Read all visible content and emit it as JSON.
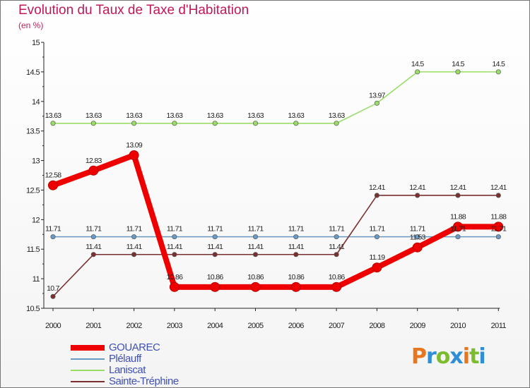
{
  "chart_data": {
    "type": "line",
    "title": "Evolution du Taux de Taxe d'Habitation",
    "subtitle": "(en %)",
    "xlabel": "",
    "ylabel": "",
    "categories": [
      "2000",
      "2001",
      "2002",
      "2003",
      "2004",
      "2005",
      "2006",
      "2007",
      "2008",
      "2009",
      "2010",
      "2011"
    ],
    "y_ticks": [
      "10.5",
      "11",
      "11.5",
      "12",
      "12.5",
      "13",
      "13.5",
      "14",
      "14.5",
      "15"
    ],
    "ylim": [
      10.5,
      15
    ],
    "grid": false,
    "legend_position": "bottom-left",
    "series": [
      {
        "name": "GOUAREC",
        "color": "#ee0000",
        "values": [
          12.58,
          12.83,
          13.09,
          10.86,
          10.86,
          10.86,
          10.86,
          10.86,
          11.19,
          11.53,
          11.88,
          11.88
        ],
        "labels": [
          "12.58",
          "12.83",
          "13.09",
          "10.86",
          "10.86",
          "10.86",
          "10.86",
          "10.86",
          "11.19",
          "11.53",
          "11.88",
          "11.88"
        ]
      },
      {
        "name": "Plélauff",
        "color": "#6a9ac4",
        "values": [
          11.71,
          11.71,
          11.71,
          11.71,
          11.71,
          11.71,
          11.71,
          11.71,
          11.71,
          11.71,
          11.71,
          11.71
        ],
        "labels": [
          "11.71",
          "11.71",
          "11.71",
          "11.71",
          "11.71",
          "11.71",
          "11.71",
          "11.71",
          "11.71",
          "11.71",
          "11.71",
          "11.71"
        ]
      },
      {
        "name": "Laniscat",
        "color": "#99dd66",
        "values": [
          13.63,
          13.63,
          13.63,
          13.63,
          13.63,
          13.63,
          13.63,
          13.63,
          13.97,
          14.5,
          14.5,
          14.5
        ],
        "labels": [
          "13.63",
          "13.63",
          "13.63",
          "13.63",
          "13.63",
          "13.63",
          "13.63",
          "13.63",
          "13.97",
          "14.5",
          "14.5",
          "14.5"
        ]
      },
      {
        "name": "Sainte-Tréphine",
        "color": "#7a3030",
        "values": [
          10.7,
          11.41,
          11.41,
          11.41,
          11.41,
          11.41,
          11.41,
          11.41,
          12.41,
          12.41,
          12.41,
          12.41
        ],
        "labels": [
          "10.7",
          "11.41",
          "11.41",
          "11.41",
          "11.41",
          "11.41",
          "11.41",
          "11.41",
          "12.41",
          "12.41",
          "12.41",
          "12.41"
        ]
      }
    ]
  },
  "logo": {
    "text": "Proxiti"
  }
}
